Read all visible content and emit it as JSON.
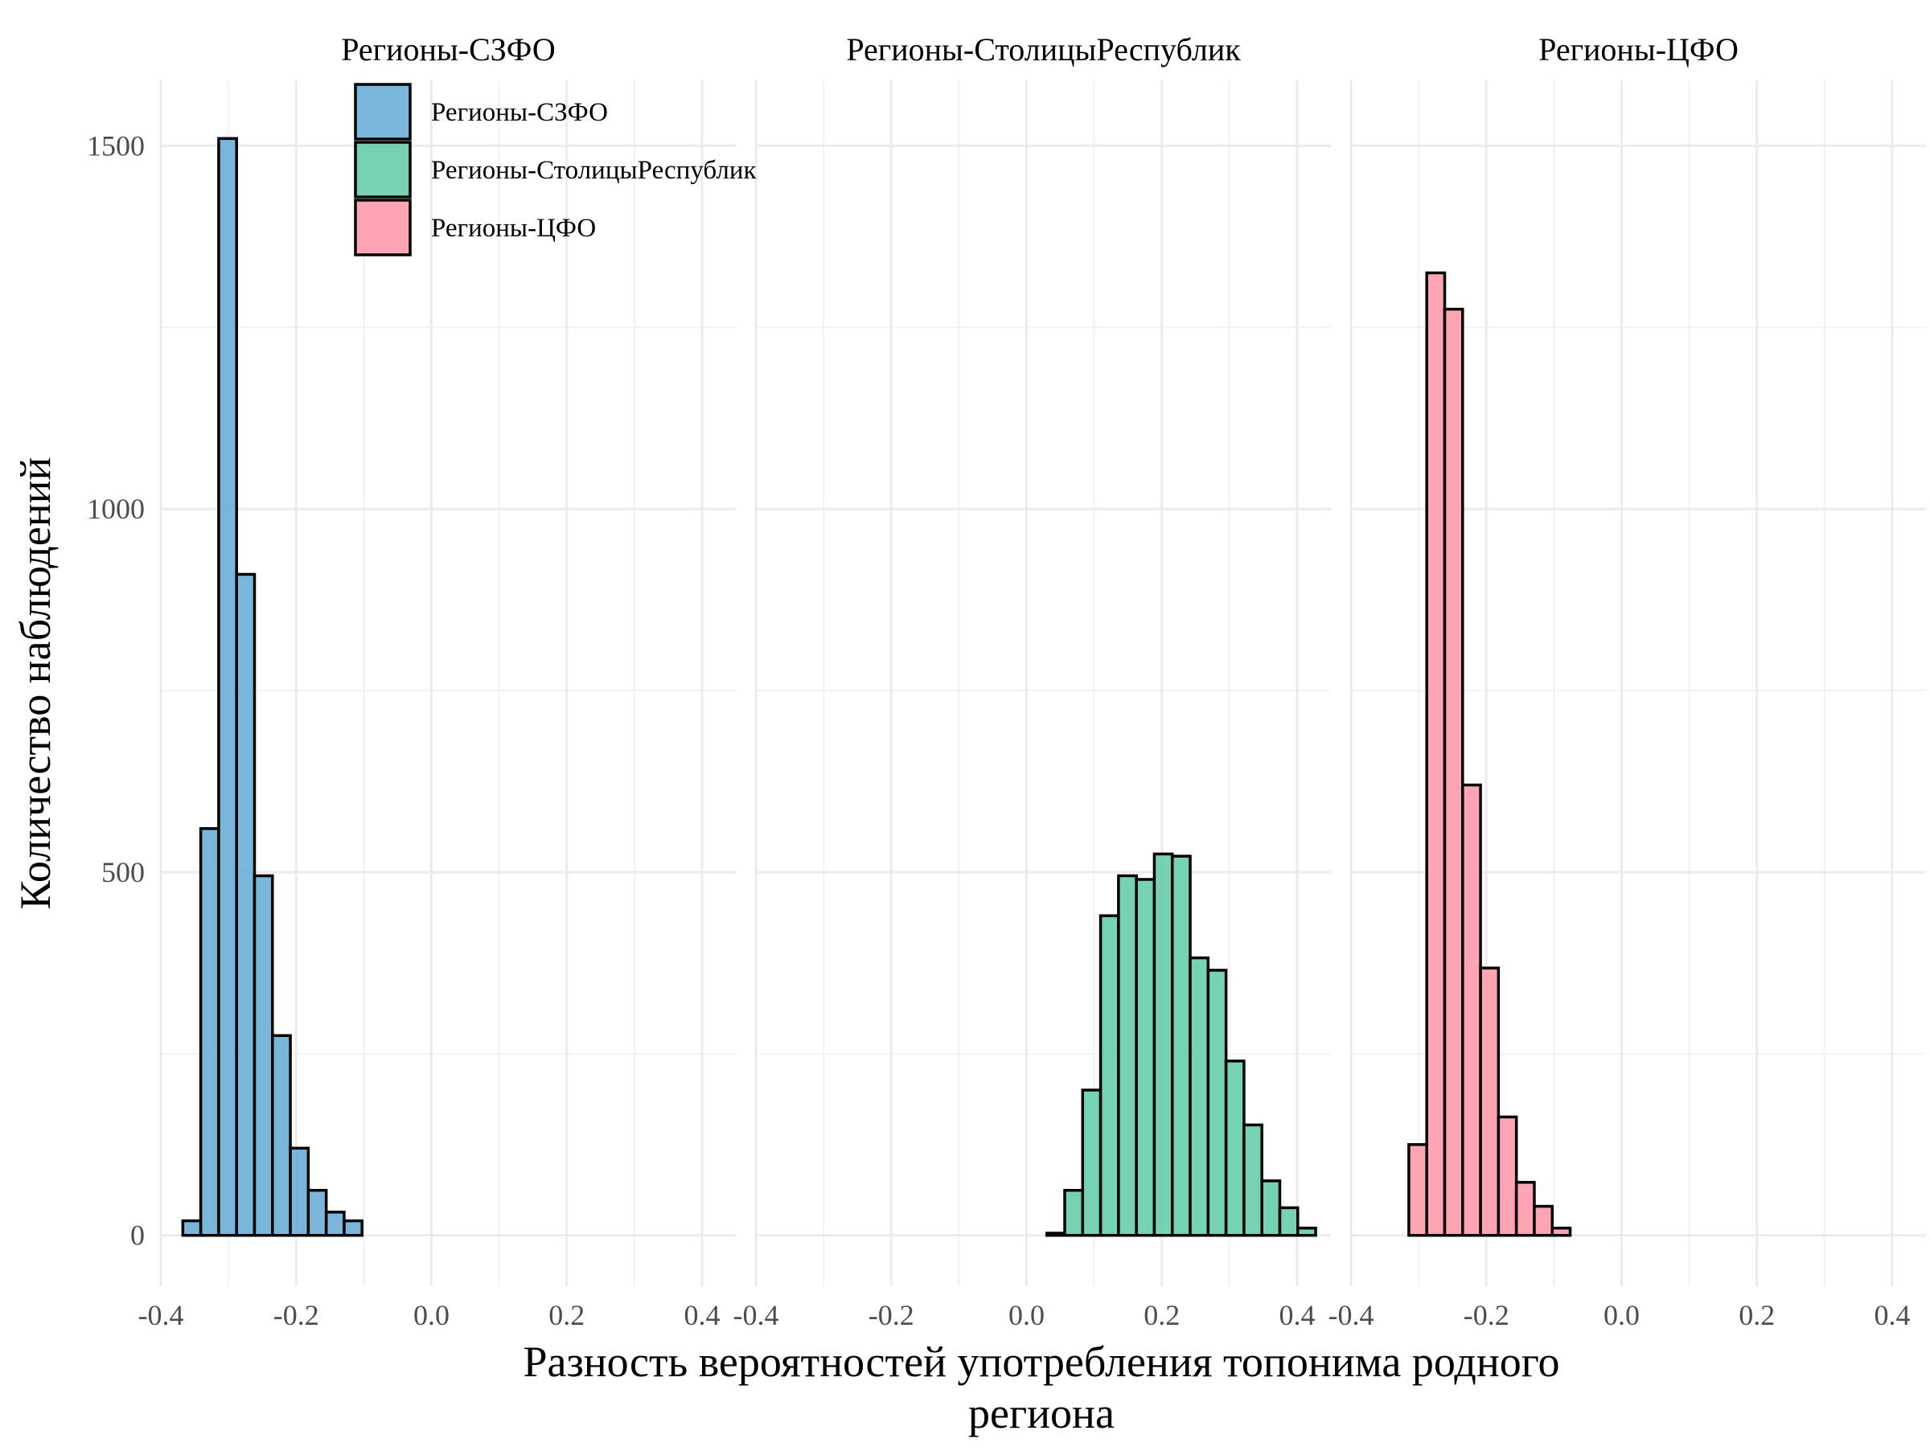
{
  "chart_data": {
    "type": "bar",
    "subtype": "faceted-histogram",
    "xlabel_lines": [
      "Разность вероятностей употребления топонима родного",
      "региона"
    ],
    "ylabel": "Количество наблюдений",
    "xlim": [
      -0.4,
      0.45
    ],
    "ylim": [
      -70,
      1590
    ],
    "x_ticks": [
      "-0.4",
      "-0.2",
      "0.0",
      "0.2",
      "0.4"
    ],
    "x_tick_values": [
      -0.4,
      -0.2,
      0.0,
      0.2,
      0.4
    ],
    "y_ticks": [
      "0",
      "500",
      "1000",
      "1500"
    ],
    "y_tick_values": [
      0,
      500,
      1000,
      1500
    ],
    "bin_start": -0.3675,
    "bin_width": 0.0265,
    "bin_count": 30,
    "grid": true,
    "legend": {
      "position": "top-left",
      "items": [
        {
          "label": "Регионы-СЗФО",
          "color": "#6baed6"
        },
        {
          "label": "Регионы-СтолицыРеспублик",
          "color": "#66cdaa"
        },
        {
          "label": "Регионы-ЦФО",
          "color": "#ff9aaa"
        }
      ]
    },
    "panels": [
      {
        "strip": "Регионы-СЗФО",
        "color": "#6baed6",
        "counts": [
          20,
          560,
          1510,
          910,
          495,
          275,
          120,
          62,
          32,
          20,
          0,
          0,
          0,
          0,
          0,
          0,
          0,
          0,
          0,
          0,
          0,
          0,
          0,
          0,
          0,
          0,
          0,
          0,
          0,
          0
        ]
      },
      {
        "strip": "Регионы-СтолицыРеспублик",
        "color": "#66cdaa",
        "counts": [
          0,
          0,
          0,
          0,
          0,
          0,
          0,
          0,
          0,
          0,
          0,
          0,
          0,
          0,
          0,
          3,
          62,
          200,
          440,
          495,
          490,
          525,
          522,
          382,
          365,
          240,
          152,
          75,
          38,
          10
        ]
      },
      {
        "strip": "Регионы-ЦФО",
        "color": "#ff9aaa",
        "counts": [
          0,
          0,
          125,
          1325,
          1275,
          620,
          368,
          163,
          73,
          40,
          10,
          0,
          0,
          0,
          0,
          0,
          0,
          0,
          0,
          0,
          0,
          0,
          0,
          0,
          0,
          0,
          0,
          0,
          0,
          0
        ]
      }
    ]
  }
}
